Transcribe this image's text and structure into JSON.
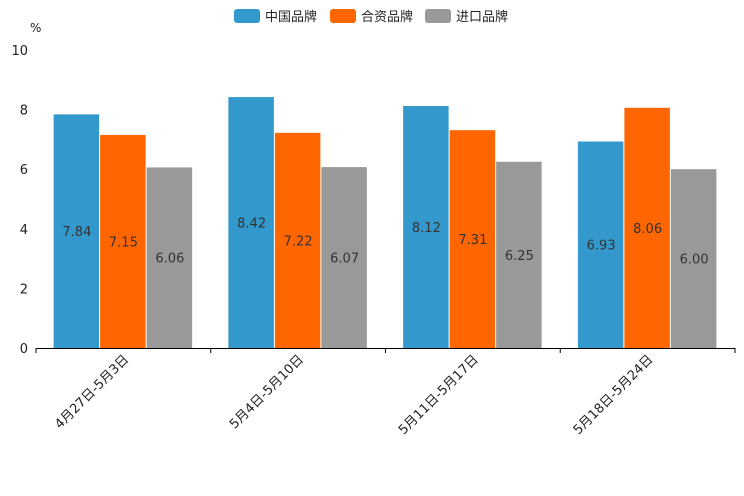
{
  "chart_data": {
    "type": "bar",
    "title": "",
    "xlabel": "",
    "ylabel": "%",
    "ylim": [
      0,
      10
    ],
    "yticks": [
      0,
      2,
      4,
      6,
      8,
      10
    ],
    "categories": [
      "4月27日-5月3日",
      "5月4日-5月10日",
      "5月11日-5月17日",
      "5月18日-5月24日"
    ],
    "series": [
      {
        "name": "中国品牌",
        "color": "#3399cc",
        "values": [
          7.84,
          8.42,
          8.12,
          6.93
        ],
        "labels": [
          "7.84",
          "8.42",
          "8.12",
          "6.93"
        ]
      },
      {
        "name": "合资品牌",
        "color": "#ff6600",
        "values": [
          7.15,
          7.22,
          7.31,
          8.06
        ],
        "labels": [
          "7.15",
          "7.22",
          "7.31",
          "8.06"
        ]
      },
      {
        "name": "进口品牌",
        "color": "#999999",
        "values": [
          6.06,
          6.07,
          6.25,
          6.0
        ],
        "labels": [
          "6.06",
          "6.07",
          "6.25",
          "6.00"
        ]
      }
    ],
    "legend": "top-center",
    "grid": false
  }
}
